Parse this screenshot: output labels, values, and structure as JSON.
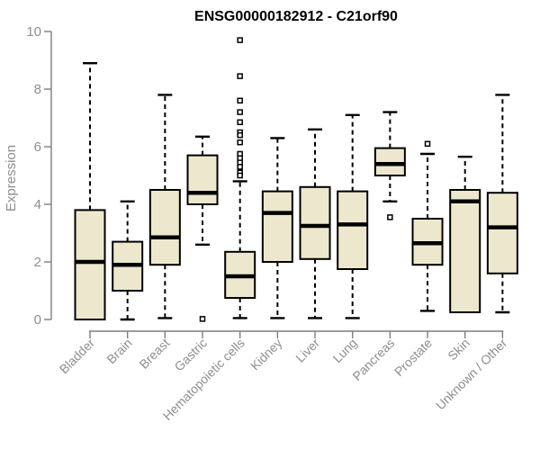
{
  "chart_data": {
    "type": "boxplot",
    "title": "ENSG00000182912 - C21orf90",
    "ylabel": "Expression",
    "xlabel": "",
    "ylim": [
      0,
      10
    ],
    "yticks": [
      0,
      2,
      4,
      6,
      8,
      10
    ],
    "grid": false,
    "legend": null,
    "categories": [
      "Bladder",
      "Brain",
      "Breast",
      "Gastric",
      "Hematopoietic cells",
      "Kidney",
      "Liver",
      "Lung",
      "Pancreas",
      "Prostate",
      "Skin",
      "Unknown / Other"
    ],
    "series": [
      {
        "category": "Bladder",
        "whisker_low": 0.0,
        "q1": 0.0,
        "median": 2.0,
        "q3": 3.8,
        "whisker_high": 8.9,
        "outliers": []
      },
      {
        "category": "Brain",
        "whisker_low": 0.0,
        "q1": 1.0,
        "median": 1.9,
        "q3": 2.7,
        "whisker_high": 4.1,
        "outliers": []
      },
      {
        "category": "Breast",
        "whisker_low": 0.05,
        "q1": 1.9,
        "median": 2.85,
        "q3": 4.5,
        "whisker_high": 7.8,
        "outliers": []
      },
      {
        "category": "Gastric",
        "whisker_low": 2.6,
        "q1": 4.0,
        "median": 4.4,
        "q3": 5.7,
        "whisker_high": 6.35,
        "outliers": [
          0.02
        ]
      },
      {
        "category": "Hematopoietic cells",
        "whisker_low": 0.05,
        "q1": 0.75,
        "median": 1.5,
        "q3": 2.35,
        "whisker_high": 4.8,
        "outliers": [
          9.7,
          8.45,
          7.6,
          7.2,
          6.85,
          6.5,
          6.4,
          6.15,
          5.75,
          5.6,
          5.45,
          5.3,
          5.1,
          5.0
        ]
      },
      {
        "category": "Kidney",
        "whisker_low": 0.05,
        "q1": 2.0,
        "median": 3.7,
        "q3": 4.45,
        "whisker_high": 6.3,
        "outliers": []
      },
      {
        "category": "Liver",
        "whisker_low": 0.05,
        "q1": 2.1,
        "median": 3.25,
        "q3": 4.6,
        "whisker_high": 6.6,
        "outliers": []
      },
      {
        "category": "Lung",
        "whisker_low": 0.05,
        "q1": 1.75,
        "median": 3.3,
        "q3": 4.45,
        "whisker_high": 7.1,
        "outliers": []
      },
      {
        "category": "Pancreas",
        "whisker_low": 4.1,
        "q1": 5.0,
        "median": 5.4,
        "q3": 5.95,
        "whisker_high": 7.2,
        "outliers": [
          3.55
        ]
      },
      {
        "category": "Prostate",
        "whisker_low": 0.3,
        "q1": 1.9,
        "median": 2.65,
        "q3": 3.5,
        "whisker_high": 5.75,
        "outliers": [
          6.1
        ]
      },
      {
        "category": "Skin",
        "whisker_low": 0.25,
        "q1": 0.25,
        "median": 4.1,
        "q3": 4.5,
        "whisker_high": 5.65,
        "outliers": []
      },
      {
        "category": "Unknown / Other",
        "whisker_low": 0.25,
        "q1": 1.6,
        "median": 3.2,
        "q3": 4.4,
        "whisker_high": 7.8,
        "outliers": []
      }
    ],
    "colors": {
      "background": "#FFFFFF",
      "box_fill": "#EDE8CD",
      "box_border": "#000000",
      "median": "#000000",
      "whisker": "#000000",
      "outlier_fill": "#FFFFFF",
      "outlier_border": "#000000",
      "axis": "#7D7D7D",
      "tick_label": "#8E8E8E",
      "title": "#000000"
    }
  }
}
